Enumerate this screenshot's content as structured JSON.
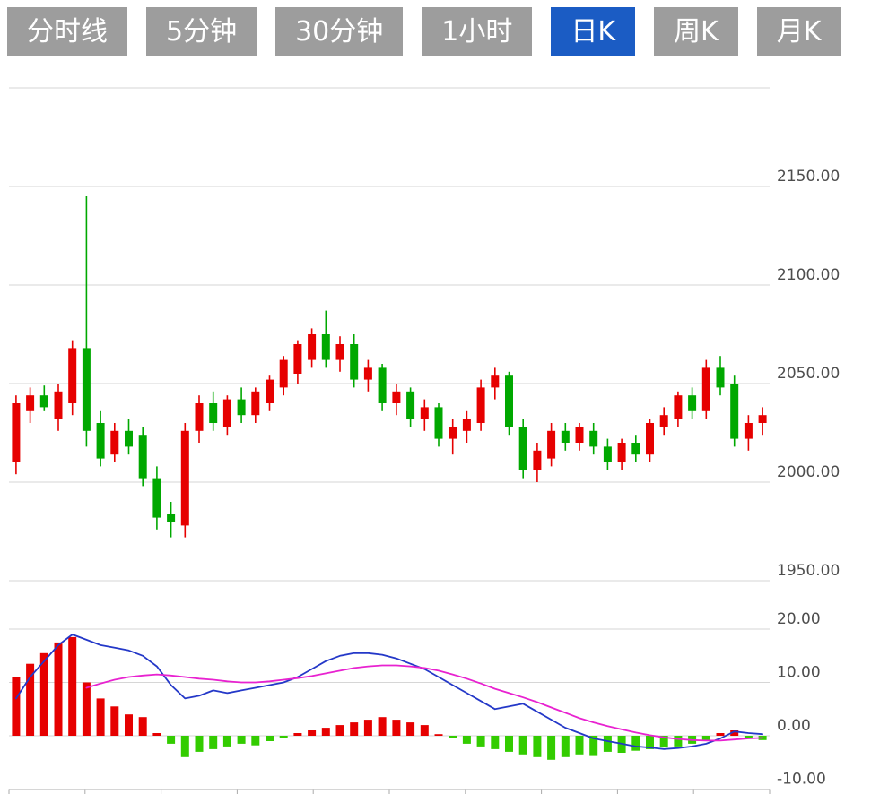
{
  "tabs": [
    {
      "label": "分时线",
      "active": false
    },
    {
      "label": "5分钟",
      "active": false
    },
    {
      "label": "30分钟",
      "active": false
    },
    {
      "label": "1小时",
      "active": false
    },
    {
      "label": "日K",
      "active": true
    },
    {
      "label": "周K",
      "active": false
    },
    {
      "label": "月K",
      "active": false
    }
  ],
  "colors": {
    "up": "#e60000",
    "down": "#00a800",
    "hist_down": "#33cc00",
    "dif_line": "#2438c8",
    "dea_line": "#e822d0",
    "grid": "#d6d6d6",
    "axis_text": "#4d4d4d",
    "tab_active_bg": "#1b5cc4",
    "tab_inactive_bg": "#9d9d9d",
    "tab_text": "#ffffff"
  },
  "chart_data": {
    "type": "candlestick+macd",
    "period": "日K",
    "price_axis": {
      "ticks": [
        2150,
        2100,
        2050,
        2000,
        1950
      ],
      "labels": [
        "2150.00",
        "2100.00",
        "2050.00",
        "2000.00",
        "1950.00"
      ],
      "range_top": 2200,
      "range_bottom": 1950
    },
    "macd_axis": {
      "ticks": [
        20,
        10,
        0,
        -10
      ],
      "labels": [
        "20.00",
        "10.00",
        "0.00",
        "-10.00"
      ]
    },
    "candle_format": [
      "open",
      "high",
      "low",
      "close"
    ],
    "candles": [
      [
        2010,
        2044,
        2004,
        2040
      ],
      [
        2036,
        2048,
        2030,
        2044
      ],
      [
        2044,
        2049,
        2036,
        2038
      ],
      [
        2032,
        2050,
        2026,
        2046
      ],
      [
        2040,
        2072,
        2034,
        2068
      ],
      [
        2068,
        2145,
        2018,
        2026
      ],
      [
        2030,
        2036,
        2008,
        2012
      ],
      [
        2014,
        2030,
        2010,
        2026
      ],
      [
        2026,
        2032,
        2014,
        2018
      ],
      [
        2024,
        2028,
        1998,
        2002
      ],
      [
        2002,
        2008,
        1976,
        1982
      ],
      [
        1984,
        1990,
        1972,
        1980
      ],
      [
        1978,
        2030,
        1972,
        2026
      ],
      [
        2026,
        2044,
        2020,
        2040
      ],
      [
        2040,
        2046,
        2026,
        2030
      ],
      [
        2028,
        2044,
        2024,
        2042
      ],
      [
        2042,
        2048,
        2030,
        2034
      ],
      [
        2034,
        2048,
        2030,
        2046
      ],
      [
        2040,
        2054,
        2036,
        2052
      ],
      [
        2048,
        2064,
        2044,
        2062
      ],
      [
        2055,
        2072,
        2050,
        2070
      ],
      [
        2062,
        2078,
        2058,
        2075
      ],
      [
        2075,
        2087,
        2058,
        2062
      ],
      [
        2062,
        2074,
        2056,
        2070
      ],
      [
        2070,
        2075,
        2048,
        2052
      ],
      [
        2052,
        2062,
        2046,
        2058
      ],
      [
        2058,
        2060,
        2036,
        2040
      ],
      [
        2040,
        2050,
        2034,
        2046
      ],
      [
        2046,
        2048,
        2028,
        2032
      ],
      [
        2032,
        2042,
        2026,
        2038
      ],
      [
        2038,
        2040,
        2018,
        2022
      ],
      [
        2022,
        2032,
        2014,
        2028
      ],
      [
        2026,
        2036,
        2020,
        2032
      ],
      [
        2030,
        2052,
        2026,
        2048
      ],
      [
        2048,
        2058,
        2042,
        2054
      ],
      [
        2054,
        2056,
        2024,
        2028
      ],
      [
        2028,
        2032,
        2002,
        2006
      ],
      [
        2006,
        2020,
        2000,
        2016
      ],
      [
        2012,
        2030,
        2008,
        2026
      ],
      [
        2026,
        2030,
        2016,
        2020
      ],
      [
        2020,
        2030,
        2016,
        2028
      ],
      [
        2026,
        2030,
        2014,
        2018
      ],
      [
        2018,
        2022,
        2006,
        2010
      ],
      [
        2010,
        2022,
        2006,
        2020
      ],
      [
        2020,
        2024,
        2010,
        2014
      ],
      [
        2014,
        2032,
        2010,
        2030
      ],
      [
        2028,
        2038,
        2024,
        2034
      ],
      [
        2032,
        2046,
        2028,
        2044
      ],
      [
        2044,
        2048,
        2032,
        2036
      ],
      [
        2036,
        2062,
        2032,
        2058
      ],
      [
        2058,
        2064,
        2044,
        2048
      ],
      [
        2050,
        2054,
        2018,
        2022
      ],
      [
        2022,
        2034,
        2016,
        2030
      ],
      [
        2030,
        2038,
        2024,
        2034
      ]
    ],
    "macd": {
      "histogram": [
        11,
        13.5,
        15.5,
        17.5,
        18.5,
        10,
        7,
        5.5,
        4,
        3.5,
        0.5,
        -1.5,
        -4,
        -3,
        -2.5,
        -2,
        -1.5,
        -1.8,
        -1,
        -0.5,
        0.5,
        1,
        1.5,
        2,
        2.5,
        3,
        3.5,
        3,
        2.5,
        2,
        0.3,
        -0.5,
        -1.5,
        -2,
        -2.5,
        -3,
        -3.5,
        -4,
        -4.5,
        -4,
        -3.5,
        -3.8,
        -3,
        -3.2,
        -2.8,
        -2.5,
        -2.2,
        -2,
        -1.5,
        -1,
        0.5,
        1,
        -0.5,
        -0.8
      ],
      "dif": [
        7,
        11,
        14,
        17,
        19,
        18,
        17,
        16.5,
        16,
        15,
        13,
        9.5,
        7,
        7.5,
        8.5,
        8,
        8.5,
        9,
        9.5,
        10,
        11,
        12.5,
        14,
        15,
        15.5,
        15.5,
        15.2,
        14.5,
        13.5,
        12.5,
        11,
        9.5,
        8,
        6.5,
        5,
        5.5,
        6,
        4.5,
        3,
        1.5,
        0.5,
        -0.5,
        -1,
        -1.5,
        -2,
        -2.2,
        -2.5,
        -2.3,
        -2,
        -1.5,
        -0.5,
        0.8,
        0.5,
        0.3
      ],
      "dea": [
        null,
        null,
        null,
        null,
        null,
        9,
        9.8,
        10.5,
        11,
        11.3,
        11.5,
        11.3,
        11,
        10.7,
        10.5,
        10.2,
        10,
        10,
        10.2,
        10.5,
        10.8,
        11.2,
        11.7,
        12.2,
        12.7,
        13,
        13.2,
        13.2,
        13,
        12.7,
        12.2,
        11.5,
        10.7,
        9.8,
        8.8,
        8,
        7.2,
        6.3,
        5.3,
        4.3,
        3.3,
        2.5,
        1.8,
        1.2,
        0.6,
        0.1,
        -0.3,
        -0.6,
        -0.8,
        -0.9,
        -0.9,
        -0.7,
        -0.5,
        -0.4
      ]
    }
  }
}
